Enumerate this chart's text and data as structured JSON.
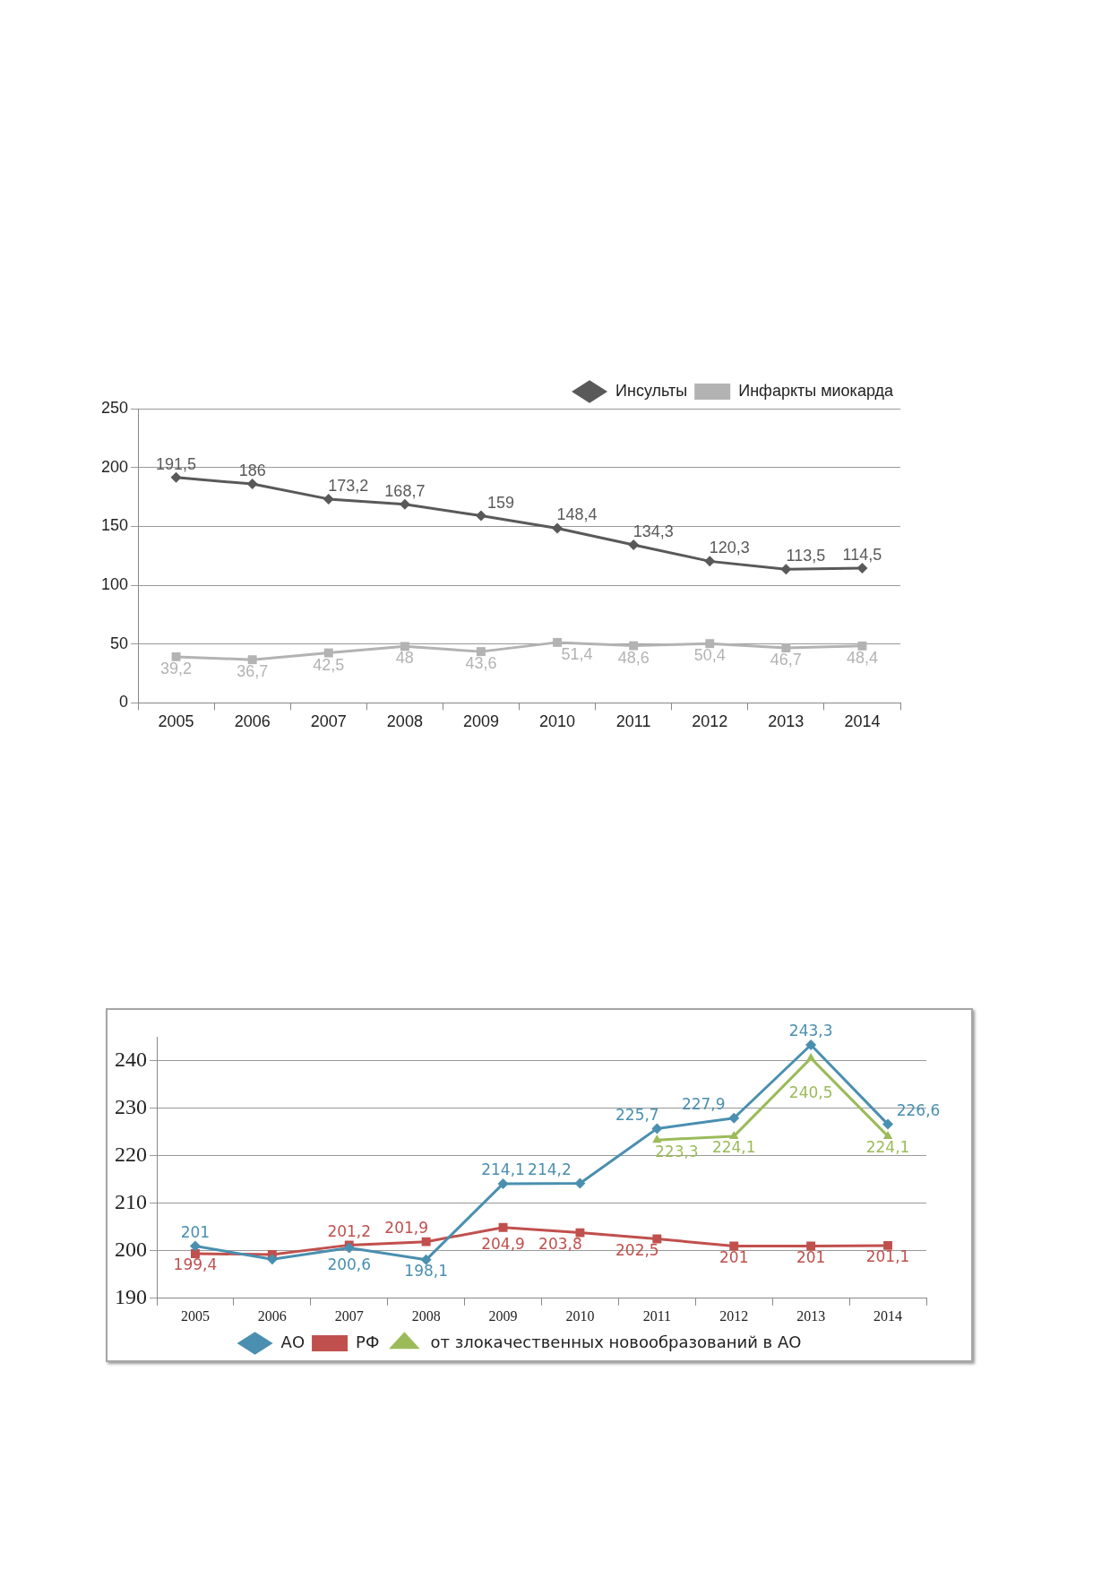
{
  "chart_data": [
    {
      "type": "line",
      "categories": [
        "2005",
        "2006",
        "2007",
        "2008",
        "2009",
        "2010",
        "2011",
        "2012",
        "2013",
        "2014"
      ],
      "series": [
        {
          "name": "Инсульты",
          "color": "#595959",
          "marker": "diamond",
          "values": [
            191.5,
            186,
            173.2,
            168.7,
            159,
            148.4,
            134.3,
            120.3,
            113.5,
            114.5
          ],
          "value_labels": [
            "191,5",
            "186",
            "173,2",
            "168,7",
            "159",
            "148,4",
            "134,3",
            "120,3",
            "113,5",
            "114,5"
          ]
        },
        {
          "name": "Инфаркты миокарда",
          "color": "#b3b3b3",
          "marker": "square",
          "values": [
            39.2,
            36.7,
            42.5,
            48,
            43.6,
            51.4,
            48.6,
            50.4,
            46.7,
            48.4
          ],
          "value_labels": [
            "39,2",
            "36,7",
            "42,5",
            "48",
            "43,6",
            "51,4",
            "48,6",
            "50,4",
            "46,7",
            "48,4"
          ]
        }
      ],
      "ylim": [
        0,
        250
      ],
      "yticks": [
        0,
        50,
        100,
        150,
        200,
        250
      ],
      "grid": "y",
      "legend": "top right"
    },
    {
      "type": "line",
      "categories": [
        "2005",
        "2006",
        "2007",
        "2008",
        "2009",
        "2010",
        "2011",
        "2012",
        "2013",
        "2014"
      ],
      "series": [
        {
          "name": "АО",
          "color": "#4a8fb0",
          "marker": "diamond",
          "values": [
            201,
            198.2,
            200.6,
            198.1,
            214.1,
            214.2,
            225.7,
            227.9,
            243.3,
            226.6
          ],
          "value_labels": [
            "201",
            null,
            "200,6",
            "198,1",
            "214,1",
            "214,2",
            "225,7",
            "227,9",
            "243,3",
            "226,6"
          ]
        },
        {
          "name": "РФ",
          "color": "#c0504d",
          "marker": "square",
          "values": [
            199.4,
            199.2,
            201.2,
            201.9,
            204.9,
            203.8,
            202.5,
            201,
            201,
            201.1
          ],
          "value_labels": [
            "199,4",
            null,
            "201,2",
            "201,9",
            "204,9",
            "203,8",
            "202,5",
            "201",
            "201",
            "201,1"
          ]
        },
        {
          "name": "от злокачественных новообразований в АО",
          "color": "#9bbb59",
          "marker": "triangle",
          "values": [
            null,
            null,
            null,
            null,
            null,
            null,
            223.3,
            224.1,
            240.5,
            224.1
          ],
          "value_labels": [
            null,
            null,
            null,
            null,
            null,
            null,
            "223,3",
            "224,1",
            "240,5",
            "224,1"
          ]
        }
      ],
      "ylim": [
        190,
        245
      ],
      "yticks": [
        190,
        200,
        210,
        220,
        230,
        240
      ],
      "grid": "y",
      "legend": "bottom"
    }
  ]
}
